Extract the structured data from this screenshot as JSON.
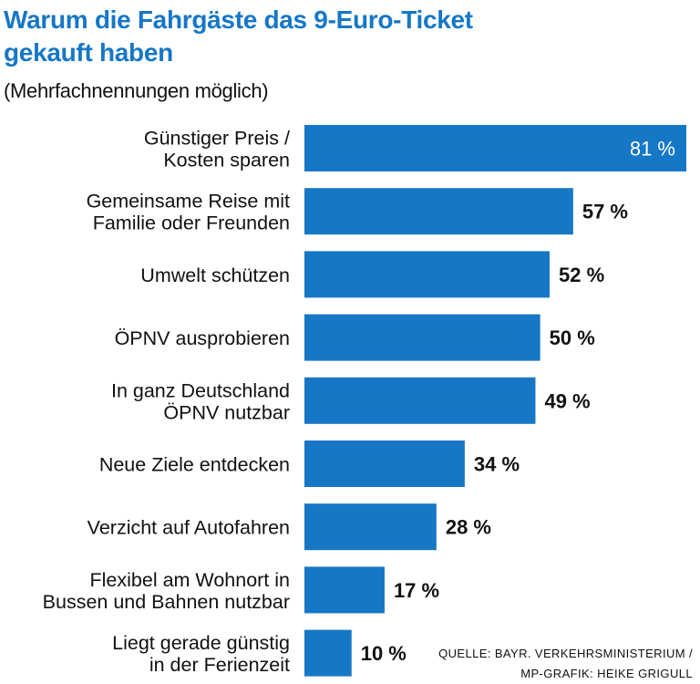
{
  "header": {
    "title_line1": "Warum die Fahrgäste das 9-Euro-Ticket",
    "title_line2": "gekauft haben",
    "subtitle": "(Mehrfachnennungen möglich)"
  },
  "source": {
    "line1": "QUELLE: BAYR. VERKEHRSMINISTERIUM /",
    "line2": "MP-GRAFIK: HEIKE GRIGULL"
  },
  "colors": {
    "bar": "#1677c6",
    "title": "#1677c6",
    "text": "#111111",
    "label_inside": "#ffffff"
  },
  "chart_data": {
    "type": "bar",
    "orientation": "horizontal",
    "grid": false,
    "legend": "none",
    "xlim": [
      0,
      81
    ],
    "value_suffix": " %",
    "categories": [
      [
        "Günstiger Preis /",
        "Kosten sparen"
      ],
      [
        "Gemeinsame Reise mit",
        "Familie oder Freunden"
      ],
      [
        "Umwelt schützen"
      ],
      [
        "ÖPNV ausprobieren"
      ],
      [
        "In ganz Deutschland",
        "ÖPNV nutzbar"
      ],
      [
        "Neue Ziele entdecken"
      ],
      [
        "Verzicht auf Autofahren"
      ],
      [
        "Flexibel am Wohnort in",
        "Bussen und Bahnen nutzbar"
      ],
      [
        "Liegt gerade günstig",
        "in der Ferienzeit"
      ]
    ],
    "values": [
      81,
      57,
      52,
      50,
      49,
      34,
      28,
      17,
      10
    ]
  }
}
